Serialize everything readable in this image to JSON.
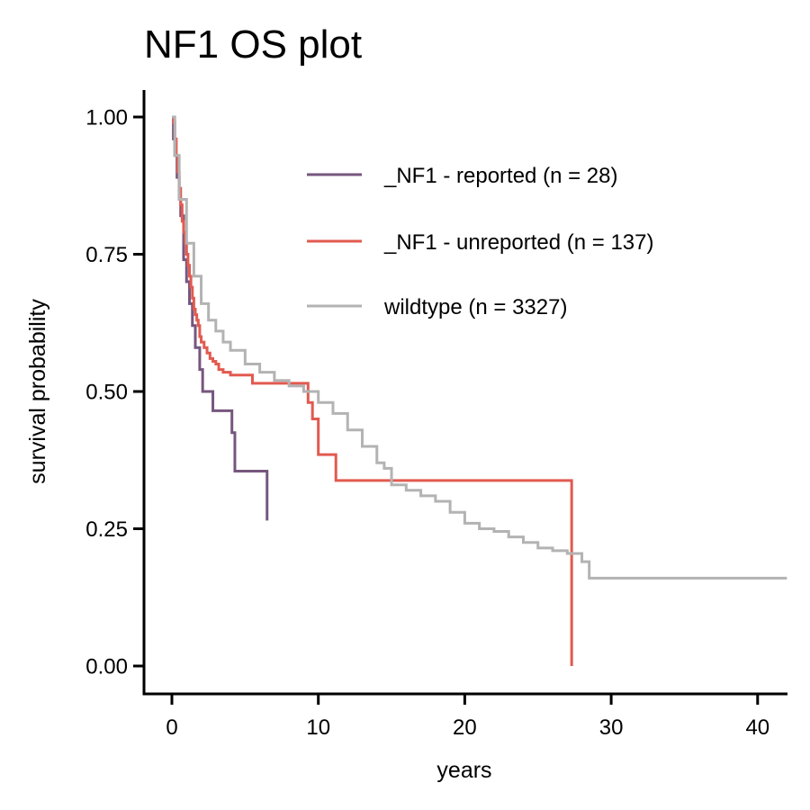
{
  "chart_data": {
    "type": "line",
    "title": "NF1 OS plot",
    "xlabel": "years",
    "ylabel": "survival probability",
    "xlim": [
      -2,
      42
    ],
    "ylim": [
      -0.05,
      1.05
    ],
    "x_ticks": [
      0,
      10,
      20,
      30,
      40
    ],
    "y_ticks": [
      0,
      0.25,
      0.5,
      0.75,
      1.0
    ],
    "x_tick_labels": [
      "0",
      "10",
      "20",
      "30",
      "40"
    ],
    "y_tick_labels": [
      "0.00",
      "0.25",
      "0.50",
      "0.75",
      "1.00"
    ],
    "grid": false,
    "legend_position": "top-right",
    "series": [
      {
        "name": "_NF1 - reported (n = 28)",
        "color": "#76567E",
        "x": [
          0,
          0.1,
          0.2,
          0.35,
          0.5,
          0.6,
          0.8,
          1.0,
          1.2,
          1.4,
          1.6,
          1.9,
          2.1,
          2.8,
          4.1,
          4.3,
          6.5
        ],
        "y": [
          1.0,
          0.96,
          0.93,
          0.89,
          0.85,
          0.82,
          0.74,
          0.7,
          0.66,
          0.62,
          0.58,
          0.54,
          0.5,
          0.465,
          0.425,
          0.355,
          0.265
        ]
      },
      {
        "name": "_NF1 - unreported (n = 137)",
        "color": "#E25A50",
        "x": [
          0,
          0.1,
          0.2,
          0.3,
          0.4,
          0.5,
          0.6,
          0.7,
          0.8,
          0.9,
          1.0,
          1.1,
          1.2,
          1.3,
          1.4,
          1.5,
          1.6,
          1.7,
          1.8,
          1.9,
          2.0,
          2.2,
          2.4,
          2.6,
          2.8,
          3.0,
          3.2,
          3.5,
          4.0,
          4.5,
          5.0,
          5.5,
          9.3,
          9.6,
          10.0,
          11.2,
          27.3,
          27.3
        ],
        "y": [
          1.0,
          0.99,
          0.96,
          0.93,
          0.9,
          0.87,
          0.84,
          0.81,
          0.79,
          0.77,
          0.75,
          0.73,
          0.71,
          0.69,
          0.67,
          0.65,
          0.64,
          0.63,
          0.62,
          0.6,
          0.59,
          0.58,
          0.57,
          0.56,
          0.555,
          0.55,
          0.54,
          0.535,
          0.53,
          0.53,
          0.53,
          0.515,
          0.48,
          0.45,
          0.385,
          0.338,
          0.338,
          0.0
        ]
      },
      {
        "name": "wildtype (n = 3327)",
        "color": "#B3B3B3",
        "x": [
          0,
          0.2,
          0.5,
          1.0,
          1.5,
          2.0,
          2.5,
          3.0,
          3.5,
          4.0,
          5.0,
          6.0,
          7.0,
          8.0,
          9.0,
          10.0,
          11.0,
          12.0,
          13.0,
          14.0,
          14.5,
          15.0,
          16.0,
          17.0,
          18.0,
          19.0,
          20.0,
          21.0,
          22.0,
          23.0,
          24.0,
          25.0,
          26.0,
          27.0,
          28.0,
          28.5,
          42.0
        ],
        "y": [
          1.0,
          0.93,
          0.85,
          0.77,
          0.71,
          0.66,
          0.63,
          0.61,
          0.59,
          0.575,
          0.55,
          0.535,
          0.52,
          0.51,
          0.5,
          0.48,
          0.46,
          0.43,
          0.4,
          0.37,
          0.36,
          0.33,
          0.32,
          0.31,
          0.3,
          0.28,
          0.26,
          0.25,
          0.245,
          0.235,
          0.225,
          0.215,
          0.21,
          0.205,
          0.19,
          0.16,
          0.16
        ]
      }
    ]
  }
}
